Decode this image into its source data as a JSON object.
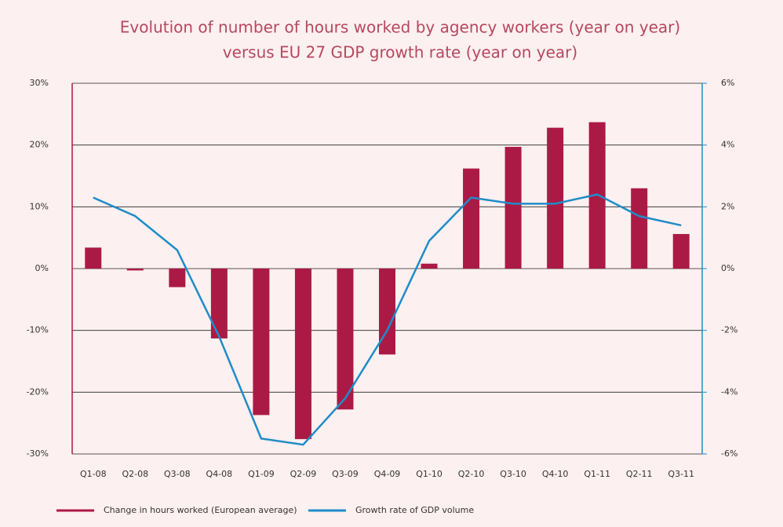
{
  "chart_data": {
    "type": "bar_line",
    "title": [
      "Evolution of number of hours worked by agency workers (year on year)",
      "versus EU 27 GDP growth rate (year on year)"
    ],
    "categories": [
      "Q1-08",
      "Q2-08",
      "Q3-08",
      "Q4-08",
      "Q1-09",
      "Q2-09",
      "Q3-09",
      "Q4-09",
      "Q1-10",
      "Q2-10",
      "Q3-10",
      "Q4-10",
      "Q1-11",
      "Q2-11",
      "Q3-11"
    ],
    "series": [
      {
        "name": "Change in hours worked (European average)",
        "type": "bar",
        "color": "#ab1a45",
        "axis": "y",
        "values": [
          3.4,
          -0.3,
          -3.0,
          -11.3,
          -23.7,
          -27.6,
          -22.8,
          -13.9,
          0.8,
          16.2,
          19.7,
          22.8,
          23.7,
          13.0,
          5.6
        ]
      },
      {
        "name": "Growth rate of GDP volume",
        "type": "line",
        "color": "#1f8dc8",
        "axis": "y2",
        "values": [
          2.3,
          1.7,
          0.6,
          -2.2,
          -5.5,
          -5.7,
          -4.2,
          -2.0,
          0.9,
          2.3,
          2.1,
          2.1,
          2.4,
          1.7,
          1.4
        ]
      }
    ],
    "ylim": [
      -30,
      30
    ],
    "yticks": [
      {
        "value": -30,
        "label": "-30%"
      },
      {
        "value": -20,
        "label": "-20%"
      },
      {
        "value": -10,
        "label": "-10%"
      },
      {
        "value": 0,
        "label": "0%"
      },
      {
        "value": 10,
        "label": "10%"
      },
      {
        "value": 20,
        "label": "20%"
      },
      {
        "value": 30,
        "label": "30%"
      }
    ],
    "y2lim": [
      -6,
      6
    ],
    "y2ticks": [
      {
        "value": -6,
        "label": "-6%"
      },
      {
        "value": -4,
        "label": "-4%"
      },
      {
        "value": -2,
        "label": "-2%"
      },
      {
        "value": 0,
        "label": "0%"
      },
      {
        "value": 2,
        "label": "2%"
      },
      {
        "value": 4,
        "label": "4%"
      },
      {
        "value": 6,
        "label": "6%"
      }
    ],
    "grid": true,
    "legend": "bottom"
  }
}
